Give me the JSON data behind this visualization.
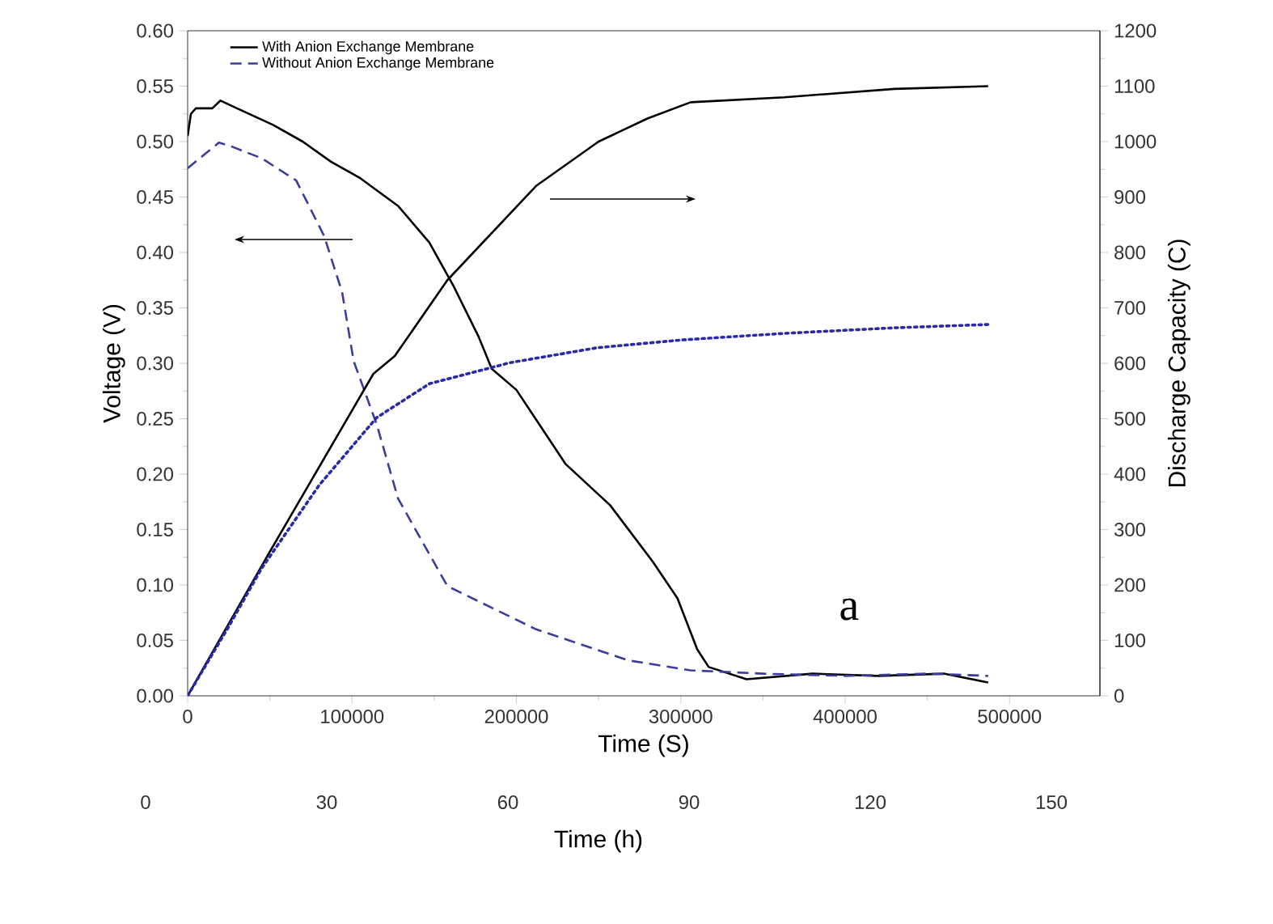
{
  "chart_data": {
    "type": "line",
    "xlabel": "Time (S)",
    "ylabel": "Voltage (V)",
    "y2label": "Discharge Capacity (C)",
    "x2label": "Time (h)",
    "xlim": [
      0,
      555000
    ],
    "xticks": [
      0,
      100000,
      200000,
      300000,
      400000,
      500000
    ],
    "ylim": [
      0,
      0.6
    ],
    "yticks": [
      {
        "value": 0,
        "label": "0.00"
      },
      {
        "value": 0.05,
        "label": "0.05"
      },
      {
        "value": 0.1,
        "label": "0.10"
      },
      {
        "value": 0.15,
        "label": "0.15"
      },
      {
        "value": 0.2,
        "label": "0.20"
      },
      {
        "value": 0.25,
        "label": "0.25"
      },
      {
        "value": 0.3,
        "label": "0.30"
      },
      {
        "value": 0.35,
        "label": "0.35"
      },
      {
        "value": 0.4,
        "label": "0.40"
      },
      {
        "value": 0.45,
        "label": "0.45"
      },
      {
        "value": 0.5,
        "label": "0.50"
      },
      {
        "value": 0.55,
        "label": "0.55"
      },
      {
        "value": 0.6,
        "label": "0.60"
      }
    ],
    "y2lim": [
      0,
      1200
    ],
    "y2ticks": [
      0,
      100,
      200,
      300,
      400,
      500,
      600,
      700,
      800,
      900,
      1000,
      1100,
      1200
    ],
    "x2lim": [
      0,
      150
    ],
    "x2ticks": [
      0,
      30,
      60,
      90,
      120,
      150
    ],
    "legend": "top left",
    "annotations": [
      "a"
    ],
    "series": [
      {
        "name": "With Anion Exchange Membrane",
        "color": "#000000",
        "line_style": "solid",
        "x": [
          0,
          2000,
          5000,
          15000,
          20000,
          30000,
          52000,
          70000,
          87000,
          105000,
          128000,
          147000,
          162000,
          177000,
          185000,
          200000,
          230000,
          257000,
          283000,
          298000,
          310000,
          317000,
          340000,
          380000,
          420000,
          460000,
          487000
        ],
        "values": [
          0.505,
          0.525,
          0.53,
          0.53,
          0.537,
          0.53,
          0.515,
          0.5,
          0.482,
          0.467,
          0.442,
          0.409,
          0.369,
          0.324,
          0.295,
          0.276,
          0.209,
          0.172,
          0.121,
          0.088,
          0.042,
          0.026,
          0.015,
          0.02,
          0.018,
          0.02,
          0.012
        ]
      },
      {
        "name": "Without Anion Exchange Membrane",
        "color": "#3c3c9c",
        "line_style": "dashed",
        "x": [
          0,
          19000,
          26000,
          45000,
          66000,
          83000,
          94000,
          101000,
          115000,
          128000,
          158000,
          212000,
          268000,
          306000,
          350000,
          400000,
          450000,
          487000
        ],
        "values": [
          0.476,
          0.499,
          0.496,
          0.485,
          0.465,
          0.415,
          0.364,
          0.302,
          0.245,
          0.178,
          0.099,
          0.06,
          0.032,
          0.023,
          0.02,
          0.018,
          0.02,
          0.018
        ]
      },
      {
        "color": "#000000",
        "line_style": "solid",
        "axis": "y2",
        "x": [
          0,
          50000,
          113000,
          126000,
          158000,
          212000,
          250000,
          280000,
          306000,
          363000,
          430000,
          487000
        ],
        "values": [
          0,
          260,
          581,
          613,
          750,
          920,
          1000,
          1042,
          1071,
          1080,
          1095,
          1100
        ]
      },
      {
        "color": "#2a2aa8",
        "line_style": "dotted",
        "axis": "y2",
        "x": [
          0,
          25000,
          45000,
          80000,
          115000,
          147000,
          196000,
          249000,
          300000,
          363000,
          430000,
          487000
        ],
        "values": [
          0,
          125,
          230,
          380,
          502,
          563,
          601,
          628,
          642,
          654,
          664,
          670
        ]
      }
    ]
  }
}
